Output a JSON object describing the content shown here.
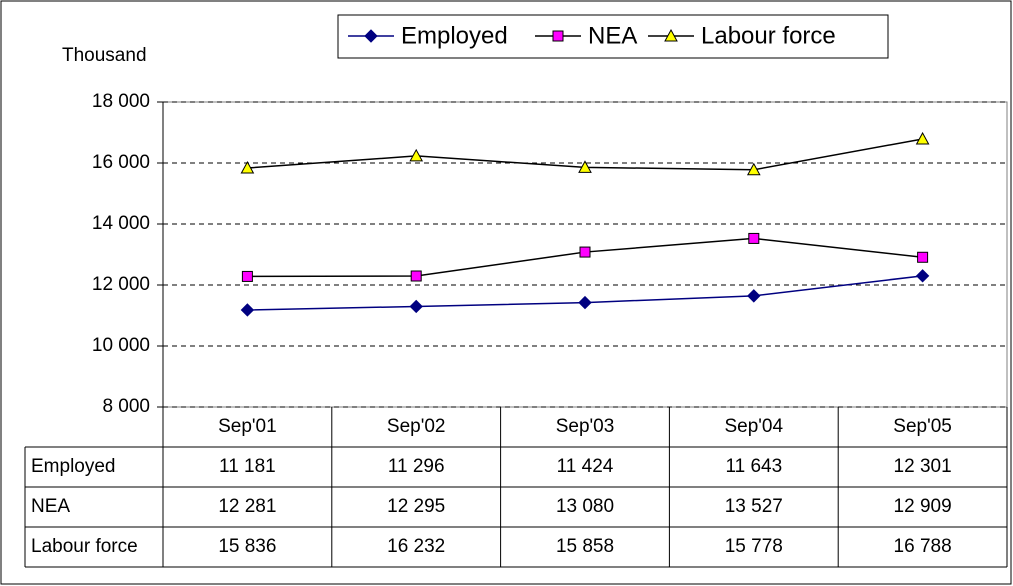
{
  "chart_data": {
    "type": "line",
    "ylabel": "Thousand",
    "categories": [
      "Sep'01",
      "Sep'02",
      "Sep'03",
      "Sep'04",
      "Sep'05"
    ],
    "series": [
      {
        "name": "Employed",
        "color": "#000080",
        "line_color": "#000080",
        "marker": "diamond",
        "values": [
          11181,
          11296,
          11424,
          11643,
          12301
        ],
        "value_labels": [
          "11 181",
          "11 296",
          "11 424",
          "11 643",
          "12 301"
        ]
      },
      {
        "name": "NEA",
        "color": "#ff00ff",
        "line_color": "#000000",
        "marker": "square",
        "values": [
          12281,
          12295,
          13080,
          13527,
          12909
        ],
        "value_labels": [
          "12 281",
          "12 295",
          "13 080",
          "13 527",
          "12 909"
        ]
      },
      {
        "name": "Labour force",
        "color": "#ffff00",
        "line_color": "#000000",
        "marker": "triangle",
        "values": [
          15836,
          16232,
          15858,
          15778,
          16788
        ],
        "value_labels": [
          "15 836",
          "16 232",
          "15 858",
          "15 778",
          "16 788"
        ]
      }
    ],
    "ylim": [
      8000,
      18000
    ],
    "yticks": [
      {
        "value": 8000,
        "label": "8 000"
      },
      {
        "value": 10000,
        "label": "10 000"
      },
      {
        "value": 12000,
        "label": "12 000"
      },
      {
        "value": 14000,
        "label": "14 000"
      },
      {
        "value": 16000,
        "label": "16 000"
      },
      {
        "value": 18000,
        "label": "18 000"
      }
    ],
    "grid": true,
    "legend": "top"
  }
}
